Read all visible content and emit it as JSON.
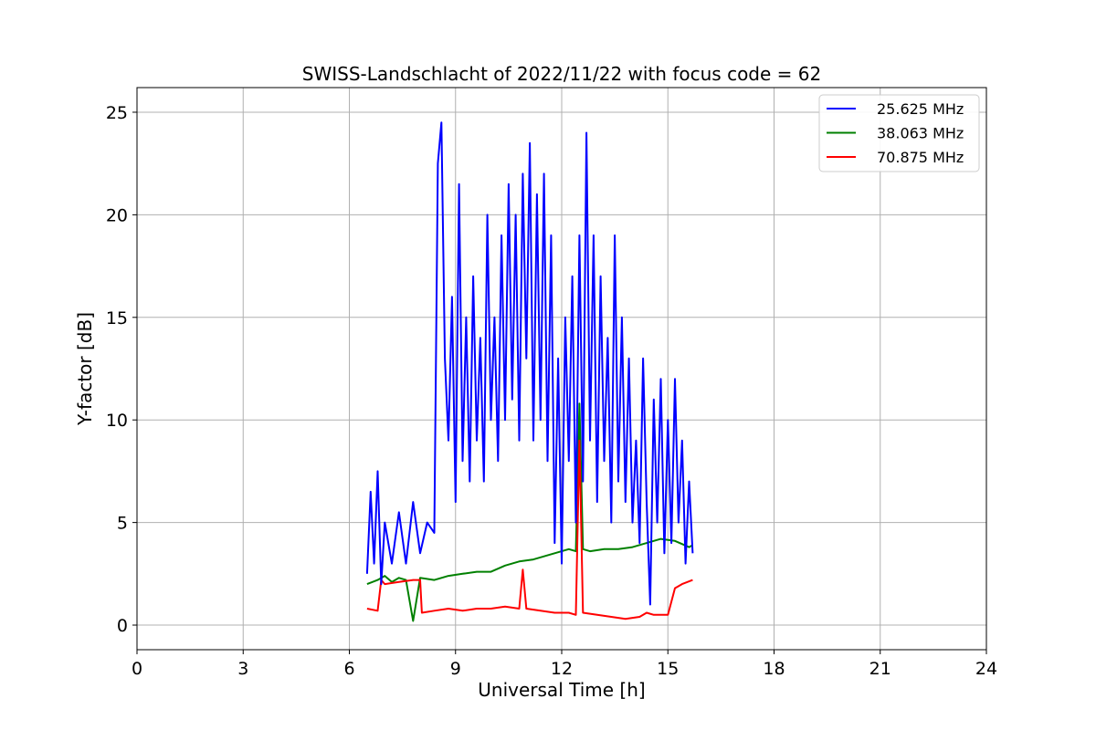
{
  "chart_data": {
    "type": "line",
    "title": "SWISS-Landschlacht of 2022/11/22 with focus code = 62",
    "xlabel": "Universal Time [h]",
    "ylabel": "Y-factor [dB]",
    "xlim": [
      0,
      24
    ],
    "ylim": [
      -1.2,
      26.2
    ],
    "xticks": [
      0,
      3,
      6,
      9,
      12,
      15,
      18,
      21,
      24
    ],
    "yticks": [
      0,
      5,
      10,
      15,
      20,
      25
    ],
    "grid": true,
    "legend_position": "top-right",
    "series": [
      {
        "name": "25.625 MHz",
        "color": "#0000ff",
        "x": [
          6.5,
          6.6,
          6.7,
          6.8,
          6.9,
          7.0,
          7.2,
          7.4,
          7.6,
          7.8,
          8.0,
          8.2,
          8.4,
          8.5,
          8.6,
          8.7,
          8.8,
          8.9,
          9.0,
          9.1,
          9.2,
          9.3,
          9.4,
          9.5,
          9.6,
          9.7,
          9.8,
          9.9,
          10.0,
          10.1,
          10.2,
          10.3,
          10.4,
          10.5,
          10.6,
          10.7,
          10.8,
          10.9,
          11.0,
          11.1,
          11.2,
          11.3,
          11.4,
          11.5,
          11.6,
          11.7,
          11.8,
          11.9,
          12.0,
          12.1,
          12.2,
          12.3,
          12.4,
          12.5,
          12.6,
          12.7,
          12.8,
          12.9,
          13.0,
          13.1,
          13.2,
          13.3,
          13.4,
          13.5,
          13.6,
          13.7,
          13.8,
          13.9,
          14.0,
          14.1,
          14.2,
          14.3,
          14.4,
          14.5,
          14.6,
          14.7,
          14.8,
          14.9,
          15.0,
          15.1,
          15.2,
          15.3,
          15.4,
          15.5,
          15.6,
          15.7
        ],
        "values": [
          2.5,
          6.5,
          3.0,
          7.5,
          2.0,
          5.0,
          3.0,
          5.5,
          3.0,
          6.0,
          3.5,
          5.0,
          4.5,
          22.5,
          24.5,
          13.0,
          9.0,
          16.0,
          6.0,
          21.5,
          8.0,
          15.0,
          7.0,
          17.0,
          9.0,
          14.0,
          7.0,
          20.0,
          10.0,
          15.0,
          8.0,
          19.0,
          10.0,
          21.5,
          11.0,
          20.0,
          9.0,
          22.0,
          13.0,
          23.5,
          9.0,
          21.0,
          10.0,
          22.0,
          8.0,
          19.0,
          4.0,
          13.0,
          3.0,
          15.0,
          8.0,
          17.0,
          5.0,
          19.0,
          7.0,
          24.0,
          9.0,
          19.0,
          6.0,
          17.0,
          8.0,
          14.0,
          5.0,
          19.0,
          7.0,
          15.0,
          6.0,
          13.0,
          5.0,
          9.0,
          4.0,
          13.0,
          6.0,
          1.0,
          11.0,
          5.0,
          12.0,
          3.5,
          10.0,
          4.0,
          12.0,
          5.0,
          9.0,
          3.0,
          7.0,
          3.5
        ]
      },
      {
        "name": "38.063 MHz",
        "color": "#008000",
        "x": [
          6.5,
          6.8,
          7.0,
          7.2,
          7.4,
          7.6,
          7.8,
          8.0,
          8.4,
          8.8,
          9.2,
          9.6,
          10.0,
          10.4,
          10.8,
          11.2,
          11.6,
          12.0,
          12.2,
          12.4,
          12.5,
          12.6,
          12.8,
          13.2,
          13.6,
          14.0,
          14.4,
          14.8,
          15.2,
          15.6,
          15.7
        ],
        "values": [
          2.0,
          2.2,
          2.4,
          2.1,
          2.3,
          2.2,
          0.2,
          2.3,
          2.2,
          2.4,
          2.5,
          2.6,
          2.6,
          2.9,
          3.1,
          3.2,
          3.4,
          3.6,
          3.7,
          3.6,
          10.8,
          3.7,
          3.6,
          3.7,
          3.7,
          3.8,
          4.0,
          4.2,
          4.1,
          3.8,
          3.9
        ]
      },
      {
        "name": "70.875 MHz",
        "color": "#ff0000",
        "x": [
          6.5,
          6.8,
          6.9,
          7.0,
          7.4,
          7.8,
          8.0,
          8.05,
          8.4,
          8.8,
          9.2,
          9.6,
          10.0,
          10.4,
          10.8,
          10.9,
          11.0,
          11.4,
          11.8,
          12.2,
          12.4,
          12.5,
          12.6,
          13.0,
          13.4,
          13.8,
          14.2,
          14.4,
          14.6,
          15.0,
          15.2,
          15.4,
          15.7
        ],
        "values": [
          0.8,
          0.7,
          2.2,
          2.0,
          2.1,
          2.2,
          2.2,
          0.6,
          0.7,
          0.8,
          0.7,
          0.8,
          0.8,
          0.9,
          0.8,
          2.7,
          0.8,
          0.7,
          0.6,
          0.6,
          0.5,
          9.0,
          0.6,
          0.5,
          0.4,
          0.3,
          0.4,
          0.6,
          0.5,
          0.5,
          1.8,
          2.0,
          2.2
        ]
      }
    ]
  }
}
